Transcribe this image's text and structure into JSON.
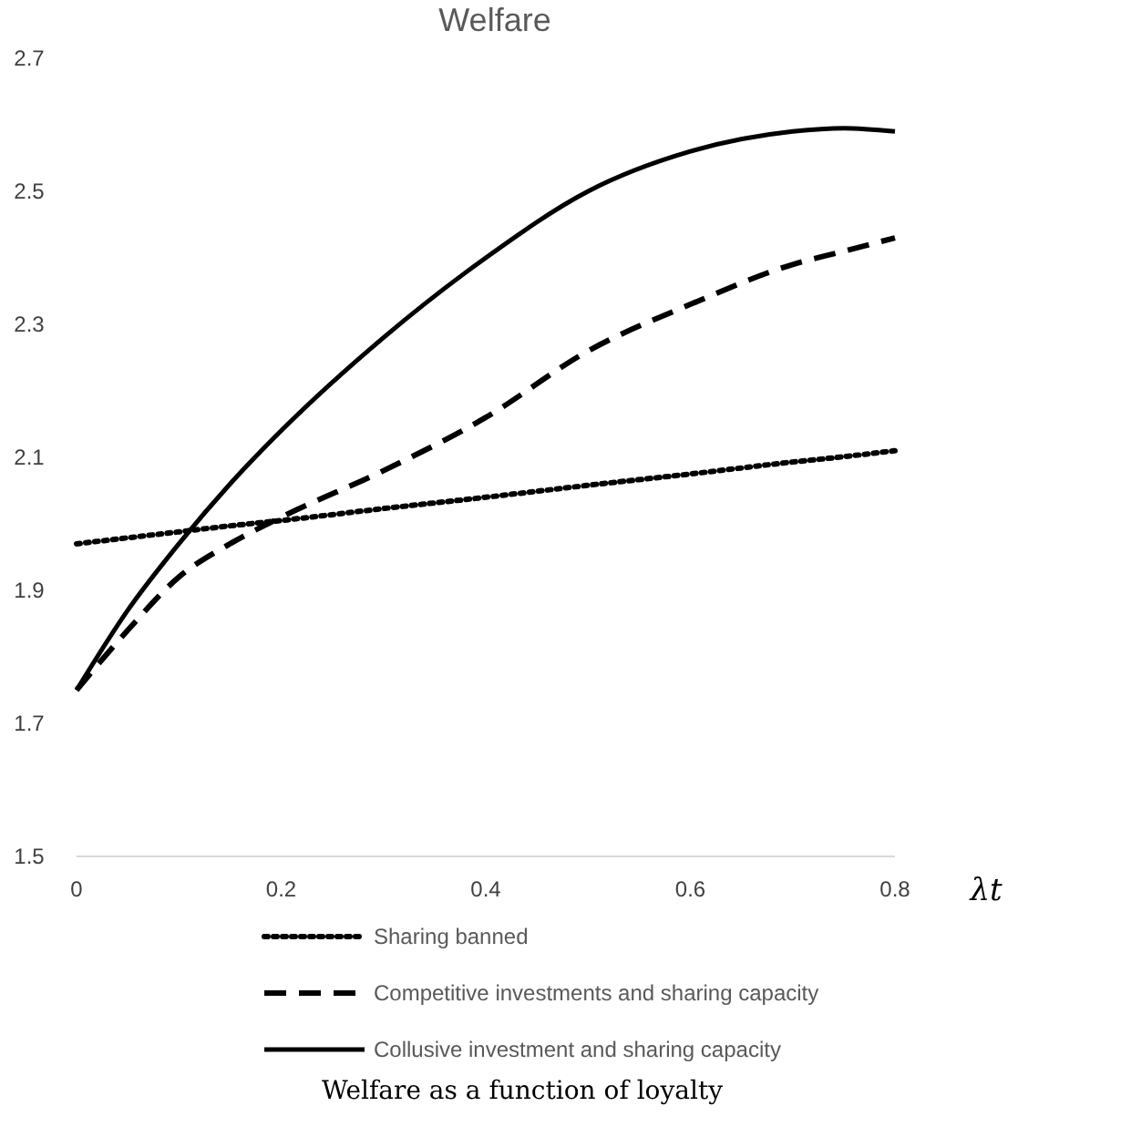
{
  "chart_data": {
    "type": "line",
    "title": "Welfare",
    "xlabel": "λt",
    "annotations": [
      "Welfare as a function of loyalty"
    ],
    "x": [
      0,
      0.05,
      0.1,
      0.15,
      0.2,
      0.3,
      0.4,
      0.5,
      0.6,
      0.7,
      0.75,
      0.8
    ],
    "xlim": [
      0,
      0.8
    ],
    "xticks": [
      0,
      0.2,
      0.4,
      0.6,
      0.8
    ],
    "ylim": [
      1.5,
      2.7
    ],
    "yticks": [
      1.5,
      1.7,
      1.9,
      2.1,
      2.3,
      2.5,
      2.7
    ],
    "grid": false,
    "legend": "bottom",
    "series": [
      {
        "name": "Sharing banned",
        "color": "#000000",
        "line_style": "dotted",
        "values": [
          1.97,
          1.979,
          1.988,
          1.997,
          2.005,
          2.023,
          2.04,
          2.058,
          2.075,
          2.093,
          2.101,
          2.11
        ]
      },
      {
        "name": "Competitive investments and sharing capacity",
        "color": "#000000",
        "line_style": "dashed",
        "values": [
          1.75,
          1.84,
          1.92,
          1.97,
          2.01,
          2.08,
          2.16,
          2.26,
          2.33,
          2.39,
          2.41,
          2.43
        ]
      },
      {
        "name": "Collusive investment and sharing capacity",
        "color": "#000000",
        "line_style": "solid",
        "values": [
          1.75,
          1.87,
          1.97,
          2.06,
          2.14,
          2.28,
          2.4,
          2.5,
          2.56,
          2.59,
          2.595,
          2.59
        ]
      }
    ]
  }
}
